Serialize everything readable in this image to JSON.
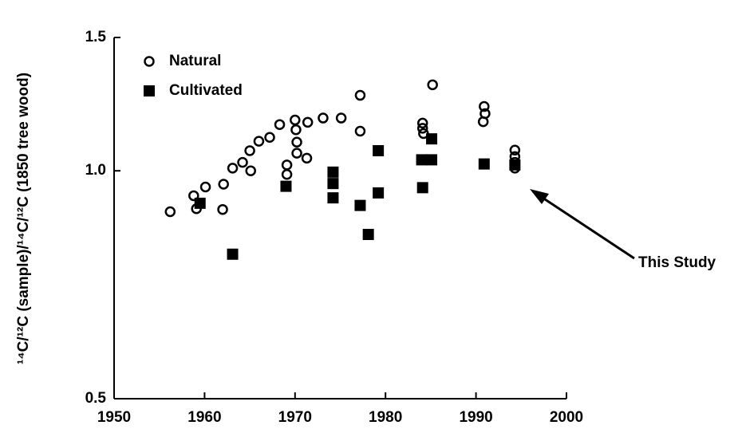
{
  "chart_data": {
    "type": "scatter",
    "y_label": "¹⁴C/¹²C (sample)/¹⁴C/¹²C (1850 tree wood)",
    "xlim": [
      1950,
      2000
    ],
    "xticks": [
      1950,
      1960,
      1970,
      1980,
      1990,
      2000
    ],
    "ylim": [
      0.5,
      1.5
    ],
    "yticks": [
      1.5,
      {
        "value": 1,
        "label": "1.0"
      },
      0.5
    ],
    "y_scale": "log",
    "grid": false,
    "legend": "top-left",
    "annotation": "This Study",
    "series": [
      {
        "name": "Natural",
        "color": "#000000",
        "marker": "open-circle",
        "x": [
          1956.2,
          1958.8,
          1959.1,
          1960.1,
          1962.1,
          1962.0,
          1963.1,
          1964.2,
          1965.1,
          1965.0,
          1966.0,
          1967.2,
          1968.3,
          1969.1,
          1969.1,
          1970.0,
          1970.1,
          1970.2,
          1970.2,
          1971.3,
          1971.4,
          1973.1,
          1975.1,
          1977.2,
          1977.2,
          1984.1,
          1984.1,
          1984.2,
          1985.2,
          1990.9,
          1991.0,
          1990.8,
          1994.3,
          1994.3,
          1994.3,
          1994.3
        ],
        "values": [
          0.883,
          0.927,
          0.891,
          0.952,
          0.96,
          0.889,
          1.008,
          1.026,
          1.0,
          1.063,
          1.094,
          1.107,
          1.151,
          1.018,
          0.989,
          1.167,
          1.133,
          1.091,
          1.055,
          1.039,
          1.159,
          1.174,
          1.174,
          1.258,
          1.128,
          1.156,
          1.138,
          1.12,
          1.299,
          1.216,
          1.19,
          1.161,
          1.065,
          1.044,
          1.026,
          1.008
        ]
      },
      {
        "name": "Cultivated",
        "color": "#000000",
        "marker": "filled-square",
        "x": [
          1959.5,
          1963.1,
          1969.0,
          1974.2,
          1974.2,
          1974.2,
          1979.2,
          1979.2,
          1977.2,
          1978.1,
          1984.0,
          1985.1,
          1985.1,
          1984.1,
          1990.9,
          1994.3
        ],
        "values": [
          0.906,
          0.776,
          0.954,
          0.996,
          0.962,
          0.921,
          1.063,
          0.935,
          0.9,
          0.824,
          1.034,
          1.034,
          1.102,
          0.95,
          1.021,
          1.018
        ]
      }
    ]
  }
}
